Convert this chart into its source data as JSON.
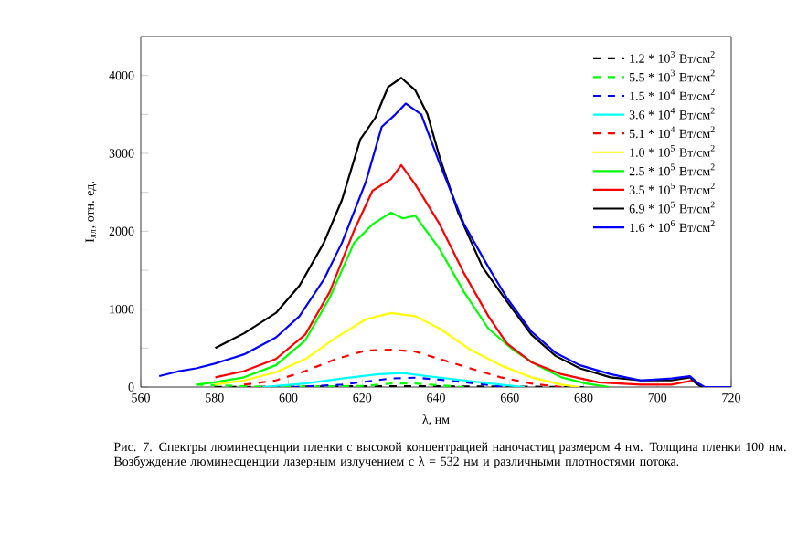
{
  "chart_data": {
    "type": "line",
    "xlabel": "λ, нм",
    "ylabel": "I$_{лл}$, отн. ед.",
    "xlim": [
      560,
      720
    ],
    "ylim": [
      0,
      4500
    ],
    "xticks": [
      560,
      580,
      600,
      620,
      640,
      660,
      680,
      700,
      720
    ],
    "yticks": [
      0,
      {
        "value": 500,
        "label": null
      },
      1000,
      {
        "value": 1500,
        "label": null
      },
      2000,
      {
        "value": 2500,
        "label": null
      },
      3000,
      {
        "value": 3500,
        "label": null
      },
      4000
    ],
    "legend": "top right",
    "annotations": [
      "Рис. 7. Спектры люминесценции пленки с высокой концентрацией наночастиц размером 4 нм. Толщина пленки 100 нм. Возбуждение люминесценции лазерным излучением с λ = 532 нм и различными плотностями потока."
    ],
    "series": [
      {
        "name": "1.2 * 10$^{3}$ Вт/см$^{2}$",
        "color": "#000000",
        "line_style": "dashed",
        "x": [
          580,
          620,
          640,
          680
        ],
        "values": [
          0,
          10,
          10,
          0
        ]
      },
      {
        "name": "5.5 * 10$^{3}$ Вт/см$^{2}$",
        "color": "#00ff00",
        "line_style": "dashed",
        "x": [
          575,
          596.6,
          621,
          627.8,
          634.4,
          647.6
        ],
        "values": [
          30,
          0,
          15,
          45,
          45,
          0
        ]
      },
      {
        "name": "1.5 * 10$^{4}$ Вт/см$^{2}$",
        "color": "#0000ff",
        "line_style": "dashed",
        "x": [
          601,
          614.5,
          627.8,
          634.4,
          641,
          651,
          659
        ],
        "values": [
          0,
          30,
          110,
          120,
          95,
          45,
          0
        ]
      },
      {
        "name": "3.6 * 10$^{4}$ Вт/см$^{2}$",
        "color": "#00ffff",
        "line_style": "solid",
        "x": [
          593,
          604.6,
          614.5,
          624.5,
          631,
          637.7,
          647.6,
          657.5,
          664
        ],
        "values": [
          0,
          45,
          110,
          165,
          180,
          140,
          85,
          30,
          0
        ]
      },
      {
        "name": "5.1 * 10$^{4}$ Вт/см$^{2}$",
        "color": "#ff0000",
        "line_style": "dashed",
        "x": [
          588,
          596.6,
          604.6,
          612.9,
          621,
          627.8,
          634.4,
          641,
          649.3,
          657.5,
          665.8,
          674
        ],
        "values": [
          30,
          85,
          205,
          360,
          470,
          480,
          455,
          360,
          240,
          125,
          45,
          0
        ]
      },
      {
        "name": "1.0 * 10$^{5}$ Вт/см$^{2}$",
        "color": "#ffff00",
        "line_style": "solid",
        "x": [
          580,
          588,
          596.6,
          604.6,
          612.9,
          621,
          627.8,
          634.4,
          641,
          649.3,
          657.5,
          665.8,
          674,
          679
        ],
        "values": [
          30,
          85,
          190,
          360,
          635,
          870,
          950,
          910,
          750,
          480,
          280,
          125,
          30,
          0
        ]
      },
      {
        "name": "2.5 * 10$^{5}$ Вт/см$^{2}$",
        "color": "#00ff00",
        "line_style": "solid",
        "x": [
          575,
          580,
          588,
          596.6,
          604.6,
          611.2,
          617.8,
          622.8,
          627.8,
          631,
          634.4,
          641,
          647.6,
          654.2,
          660.8,
          667.4,
          674,
          680.6,
          687
        ],
        "values": [
          30,
          60,
          125,
          280,
          600,
          1145,
          1850,
          2090,
          2240,
          2165,
          2200,
          1770,
          1220,
          750,
          480,
          280,
          125,
          45,
          0
        ]
      },
      {
        "name": "3.5 * 10$^{5}$ Вт/см$^{2}$",
        "color": "#ff0000",
        "line_style": "solid",
        "x": [
          580.2,
          588,
          596.6,
          604.6,
          611.2,
          617.8,
          622.8,
          627.8,
          630.6,
          634.4,
          641,
          647.6,
          654.2,
          659.2,
          665.8,
          674,
          684,
          695.5,
          703.8,
          709.6,
          712
        ],
        "values": [
          125,
          205,
          360,
          675,
          1220,
          2010,
          2520,
          2670,
          2850,
          2600,
          2090,
          1460,
          910,
          560,
          320,
          165,
          60,
          30,
          30,
          85,
          0
        ]
      },
      {
        "name": "6.9 * 10$^{5}$ Вт/см$^{2}$",
        "color": "#000000",
        "line_style": "solid",
        "x": [
          580.2,
          588,
          596.6,
          603,
          609.6,
          614.5,
          619.5,
          623.6,
          627,
          630.6,
          634.4,
          637.7,
          641,
          646,
          652.6,
          659.2,
          665.8,
          672.4,
          679,
          687.3,
          695.5,
          703.8,
          708.8,
          710.4,
          712,
          720
        ],
        "values": [
          500,
          690,
          950,
          1300,
          1850,
          2400,
          3180,
          3460,
          3850,
          3970,
          3810,
          3500,
          2950,
          2240,
          1540,
          1100,
          675,
          400,
          240,
          125,
          85,
          85,
          125,
          50,
          0,
          0
        ]
      },
      {
        "name": "1.6 * 10$^{6}$ Вт/см$^{2}$",
        "color": "#0000ff",
        "line_style": "solid",
        "x": [
          565,
          570,
          575,
          580,
          588,
          596.6,
          603,
          609.6,
          614.5,
          621,
          625.3,
          629,
          631.8,
          636,
          641,
          647.6,
          654.2,
          659.2,
          665.8,
          672.4,
          679,
          687.3,
          695.5,
          703.8,
          708.8,
          711,
          712.8,
          720
        ],
        "values": [
          140,
          200,
          240,
          300,
          420,
          635,
          910,
          1380,
          1850,
          2635,
          3340,
          3500,
          3640,
          3500,
          2870,
          2090,
          1540,
          1145,
          715,
          440,
          280,
          165,
          85,
          110,
          140,
          50,
          0,
          0
        ]
      }
    ]
  }
}
